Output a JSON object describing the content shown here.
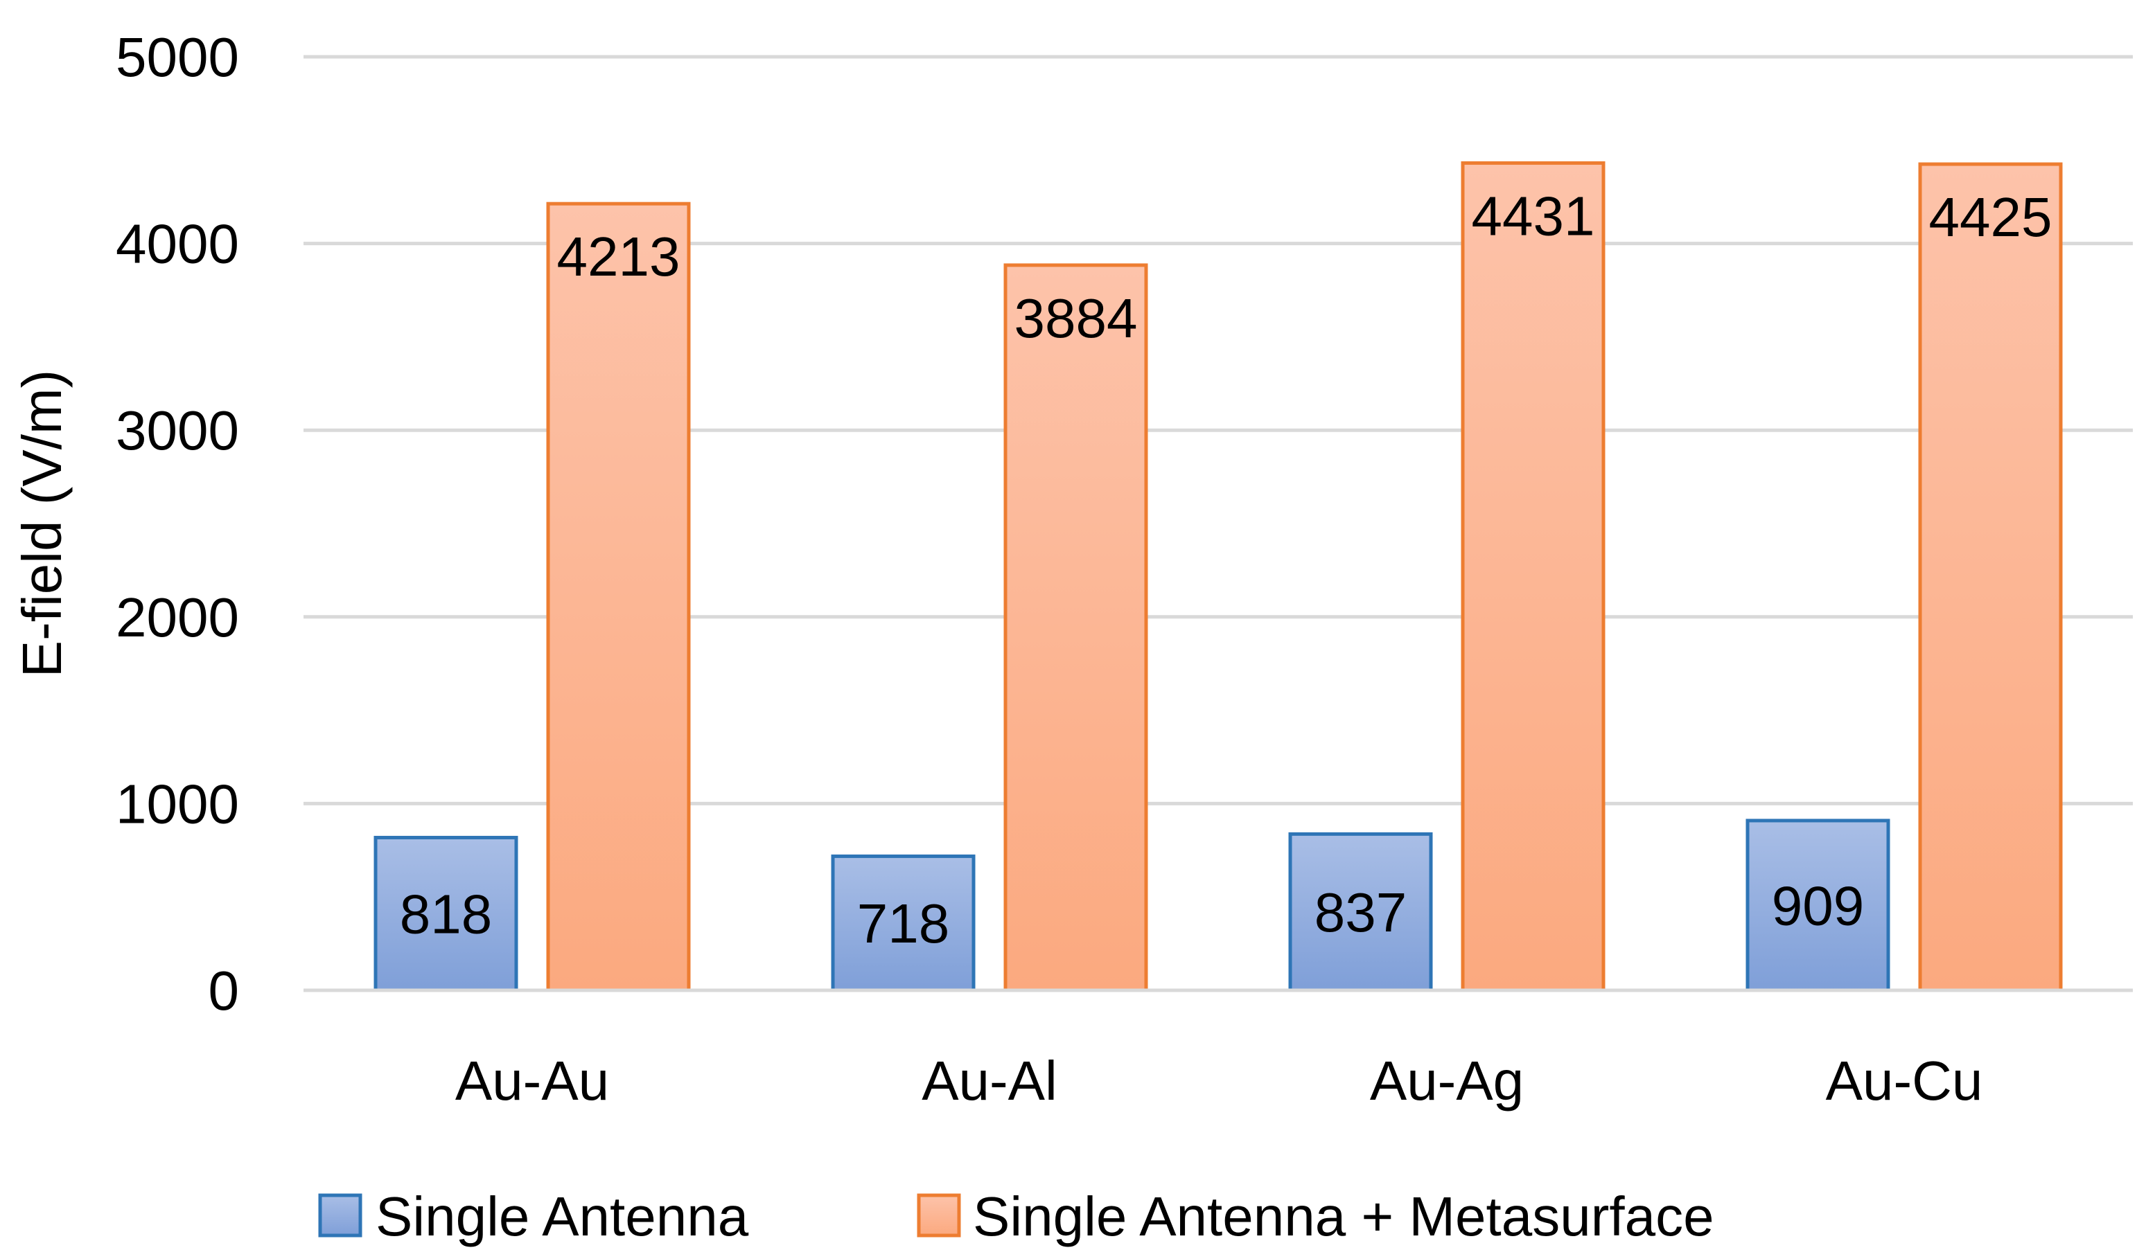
{
  "chart_data": {
    "type": "bar",
    "title": "",
    "xlabel": "",
    "ylabel": "E-field (V/m)",
    "ylim": [
      0,
      5000
    ],
    "yticks": [
      0,
      1000,
      2000,
      3000,
      4000,
      5000
    ],
    "grid": true,
    "legend_position": "bottom",
    "categories": [
      "Au-Au",
      "Au-Al",
      "Au-Ag",
      "Au-Cu"
    ],
    "series": [
      {
        "name": "Single Antenna",
        "values": [
          818,
          718,
          837,
          909
        ],
        "color": "#8FAADC",
        "edge": "#2E75B6"
      },
      {
        "name": "Single Antenna + Metasurface",
        "values": [
          4213,
          3884,
          4431,
          4425
        ],
        "color": "#FBB396",
        "edge": "#ED7D31"
      }
    ]
  }
}
